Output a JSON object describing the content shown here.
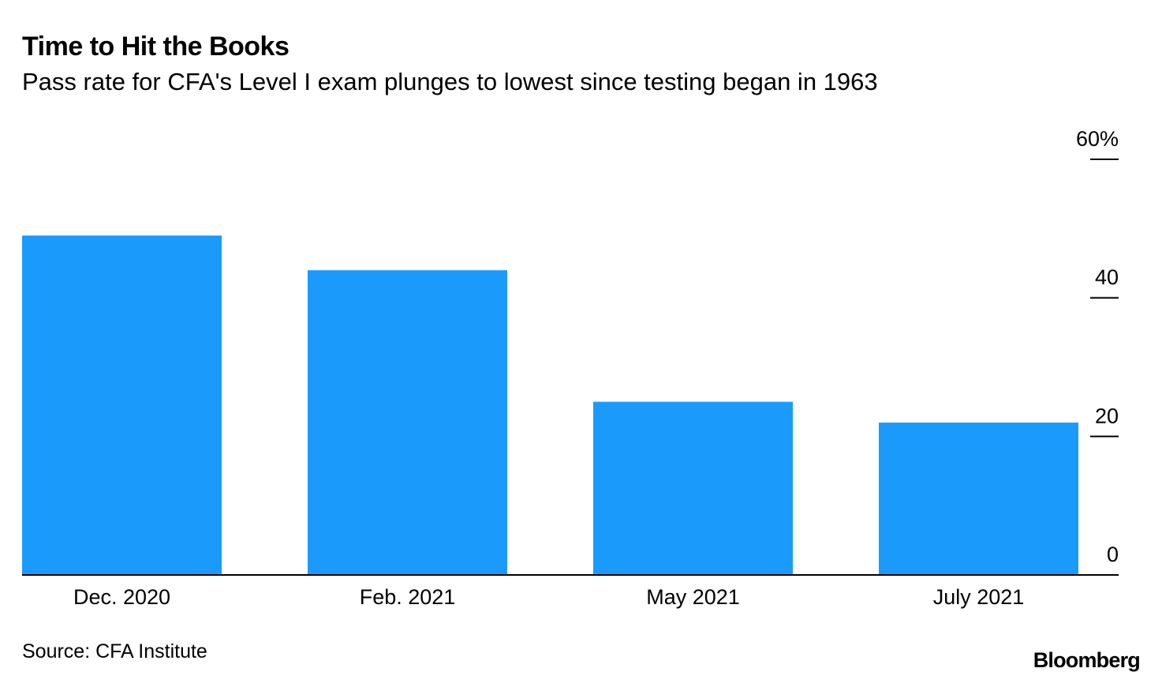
{
  "header": {
    "title": "Time to Hit the Books",
    "subtitle": "Pass rate for CFA's Level I exam plunges to lowest since testing began in 1963"
  },
  "footer": {
    "source": "Source: CFA Institute",
    "brand": "Bloomberg"
  },
  "chart_data": {
    "type": "bar",
    "title": "Time to Hit the Books",
    "subtitle": "Pass rate for CFA's Level I exam plunges to lowest since testing began in 1963",
    "xlabel": "",
    "ylabel": "",
    "categories": [
      "Dec. 2020",
      "Feb. 2021",
      "May 2021",
      "July 2021"
    ],
    "values": [
      49,
      44,
      25,
      22
    ],
    "ylim": [
      0,
      60
    ],
    "yticks": [
      0,
      20,
      40,
      60
    ],
    "ytick_labels": [
      "0",
      "20",
      "40",
      "60%"
    ],
    "y_axis_side": "right",
    "grid": false,
    "legend": "none",
    "bar_color": "#1a9bfc"
  }
}
